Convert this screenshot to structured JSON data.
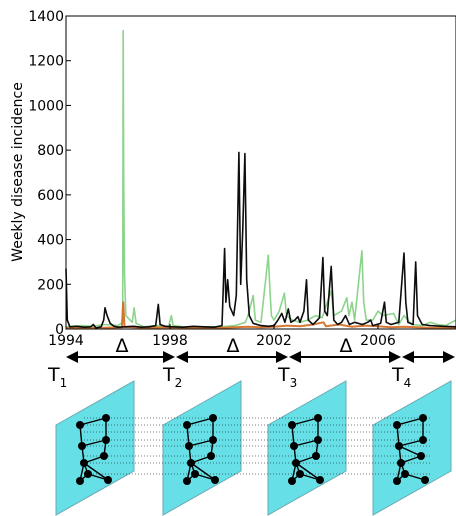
{
  "chart_data": {
    "type": "line",
    "title": "",
    "xlabel": "",
    "ylabel": "Weekly disease incidence",
    "xlim": [
      1994,
      2009
    ],
    "ylim": [
      0,
      1400
    ],
    "xticks": [
      "1994",
      "1998",
      "2002",
      "2006"
    ],
    "yticks": [
      "0",
      "200",
      "400",
      "600",
      "800",
      "1000",
      "1200",
      "1400"
    ],
    "grid": false,
    "colors": [
      "#000000",
      "#7fcf7f",
      "#d2691e"
    ],
    "series": [
      {
        "color": "#000000",
        "points": [
          [
            1994.0,
            270
          ],
          [
            1994.05,
            40
          ],
          [
            1994.15,
            10
          ],
          [
            1994.4,
            12
          ],
          [
            1994.7,
            8
          ],
          [
            1994.95,
            10
          ],
          [
            1995.05,
            20
          ],
          [
            1995.15,
            5
          ],
          [
            1995.35,
            10
          ],
          [
            1995.45,
            40
          ],
          [
            1995.5,
            95
          ],
          [
            1995.58,
            60
          ],
          [
            1995.7,
            25
          ],
          [
            1995.85,
            12
          ],
          [
            1996.0,
            8
          ],
          [
            1996.3,
            10
          ],
          [
            1996.6,
            12
          ],
          [
            1996.9,
            8
          ],
          [
            1997.2,
            10
          ],
          [
            1997.45,
            15
          ],
          [
            1997.55,
            110
          ],
          [
            1997.62,
            20
          ],
          [
            1997.8,
            12
          ],
          [
            1998.1,
            10
          ],
          [
            1998.5,
            8
          ],
          [
            1998.9,
            12
          ],
          [
            1999.3,
            10
          ],
          [
            1999.7,
            8
          ],
          [
            2000.0,
            15
          ],
          [
            2000.1,
            360
          ],
          [
            2000.15,
            120
          ],
          [
            2000.22,
            220
          ],
          [
            2000.3,
            100
          ],
          [
            2000.45,
            60
          ],
          [
            2000.55,
            150
          ],
          [
            2000.65,
            790
          ],
          [
            2000.72,
            200
          ],
          [
            2000.8,
            450
          ],
          [
            2000.88,
            785
          ],
          [
            2000.95,
            220
          ],
          [
            2001.05,
            60
          ],
          [
            2001.2,
            25
          ],
          [
            2001.5,
            15
          ],
          [
            2001.8,
            12
          ],
          [
            2002.0,
            15
          ],
          [
            2002.15,
            40
          ],
          [
            2002.3,
            70
          ],
          [
            2002.42,
            30
          ],
          [
            2002.55,
            90
          ],
          [
            2002.65,
            30
          ],
          [
            2002.8,
            40
          ],
          [
            2002.92,
            55
          ],
          [
            2003.0,
            30
          ],
          [
            2003.15,
            80
          ],
          [
            2003.25,
            220
          ],
          [
            2003.32,
            40
          ],
          [
            2003.5,
            20
          ],
          [
            2003.75,
            50
          ],
          [
            2003.88,
            320
          ],
          [
            2003.95,
            80
          ],
          [
            2004.05,
            60
          ],
          [
            2004.2,
            280
          ],
          [
            2004.3,
            40
          ],
          [
            2004.45,
            20
          ],
          [
            2004.6,
            30
          ],
          [
            2004.75,
            60
          ],
          [
            2004.9,
            20
          ],
          [
            2005.1,
            30
          ],
          [
            2005.4,
            20
          ],
          [
            2005.6,
            30
          ],
          [
            2005.72,
            40
          ],
          [
            2005.8,
            15
          ],
          [
            2006.1,
            25
          ],
          [
            2006.25,
            120
          ],
          [
            2006.32,
            30
          ],
          [
            2006.5,
            20
          ],
          [
            2006.8,
            30
          ],
          [
            2007.0,
            340
          ],
          [
            2007.07,
            120
          ],
          [
            2007.15,
            30
          ],
          [
            2007.35,
            20
          ],
          [
            2007.45,
            300
          ],
          [
            2007.52,
            60
          ],
          [
            2007.7,
            20
          ],
          [
            2008.0,
            15
          ],
          [
            2008.5,
            12
          ],
          [
            2009.0,
            10
          ]
        ]
      },
      {
        "color": "#7fcf7f",
        "points": [
          [
            1994.0,
            10
          ],
          [
            1994.6,
            15
          ],
          [
            1995.0,
            12
          ],
          [
            1995.5,
            20
          ],
          [
            1996.0,
            15
          ],
          [
            1996.18,
            30
          ],
          [
            1996.2,
            1335
          ],
          [
            1996.22,
            680
          ],
          [
            1996.25,
            250
          ],
          [
            1996.3,
            60
          ],
          [
            1996.55,
            30
          ],
          [
            1996.62,
            95
          ],
          [
            1996.7,
            25
          ],
          [
            1997.0,
            10
          ],
          [
            1997.5,
            15
          ],
          [
            1997.95,
            12
          ],
          [
            1998.05,
            60
          ],
          [
            1998.12,
            15
          ],
          [
            1998.5,
            10
          ],
          [
            1999.0,
            8
          ],
          [
            1999.5,
            10
          ],
          [
            2000.0,
            10
          ],
          [
            2000.5,
            15
          ],
          [
            2000.9,
            30
          ],
          [
            2001.0,
            60
          ],
          [
            2001.2,
            150
          ],
          [
            2001.28,
            40
          ],
          [
            2001.5,
            30
          ],
          [
            2001.78,
            330
          ],
          [
            2001.85,
            160
          ],
          [
            2001.9,
            60
          ],
          [
            2002.0,
            40
          ],
          [
            2002.2,
            80
          ],
          [
            2002.4,
            160
          ],
          [
            2002.48,
            60
          ],
          [
            2002.7,
            40
          ],
          [
            2003.0,
            30
          ],
          [
            2003.3,
            40
          ],
          [
            2003.6,
            60
          ],
          [
            2003.85,
            50
          ],
          [
            2004.2,
            170
          ],
          [
            2004.3,
            60
          ],
          [
            2004.6,
            80
          ],
          [
            2004.8,
            140
          ],
          [
            2004.88,
            60
          ],
          [
            2005.0,
            120
          ],
          [
            2005.1,
            40
          ],
          [
            2005.38,
            350
          ],
          [
            2005.45,
            120
          ],
          [
            2005.55,
            40
          ],
          [
            2005.8,
            40
          ],
          [
            2006.0,
            80
          ],
          [
            2006.2,
            60
          ],
          [
            2006.6,
            70
          ],
          [
            2006.8,
            20
          ],
          [
            2007.0,
            60
          ],
          [
            2007.3,
            20
          ],
          [
            2007.7,
            15
          ],
          [
            2008.0,
            30
          ],
          [
            2008.3,
            20
          ],
          [
            2008.6,
            15
          ],
          [
            2009.0,
            40
          ]
        ]
      },
      {
        "color": "#d2691e",
        "points": [
          [
            1994.0,
            5
          ],
          [
            1995.0,
            4
          ],
          [
            1996.15,
            8
          ],
          [
            1996.2,
            120
          ],
          [
            1996.25,
            10
          ],
          [
            1997.0,
            6
          ],
          [
            1998.0,
            8
          ],
          [
            1999.0,
            5
          ],
          [
            2000.0,
            6
          ],
          [
            2000.5,
            8
          ],
          [
            2001.0,
            10
          ],
          [
            2001.5,
            8
          ],
          [
            2002.0,
            10
          ],
          [
            2002.5,
            15
          ],
          [
            2003.0,
            12
          ],
          [
            2003.5,
            20
          ],
          [
            2003.9,
            30
          ],
          [
            2004.0,
            12
          ],
          [
            2004.5,
            20
          ],
          [
            2005.0,
            10
          ],
          [
            2005.5,
            15
          ],
          [
            2006.0,
            12
          ],
          [
            2006.5,
            8
          ],
          [
            2007.0,
            10
          ],
          [
            2007.5,
            8
          ],
          [
            2008.0,
            6
          ],
          [
            2009.0,
            5
          ]
        ]
      }
    ]
  },
  "timeline": {
    "deltas": [
      "Δ",
      "Δ",
      "Δ"
    ],
    "windows": [
      {
        "letter": "T",
        "sub": "1"
      },
      {
        "letter": "T",
        "sub": "2"
      },
      {
        "letter": "T",
        "sub": "3"
      },
      {
        "letter": "T",
        "sub": "4"
      }
    ]
  },
  "networks": {
    "plane_color": "#66e0e6",
    "plane_count": 4
  }
}
